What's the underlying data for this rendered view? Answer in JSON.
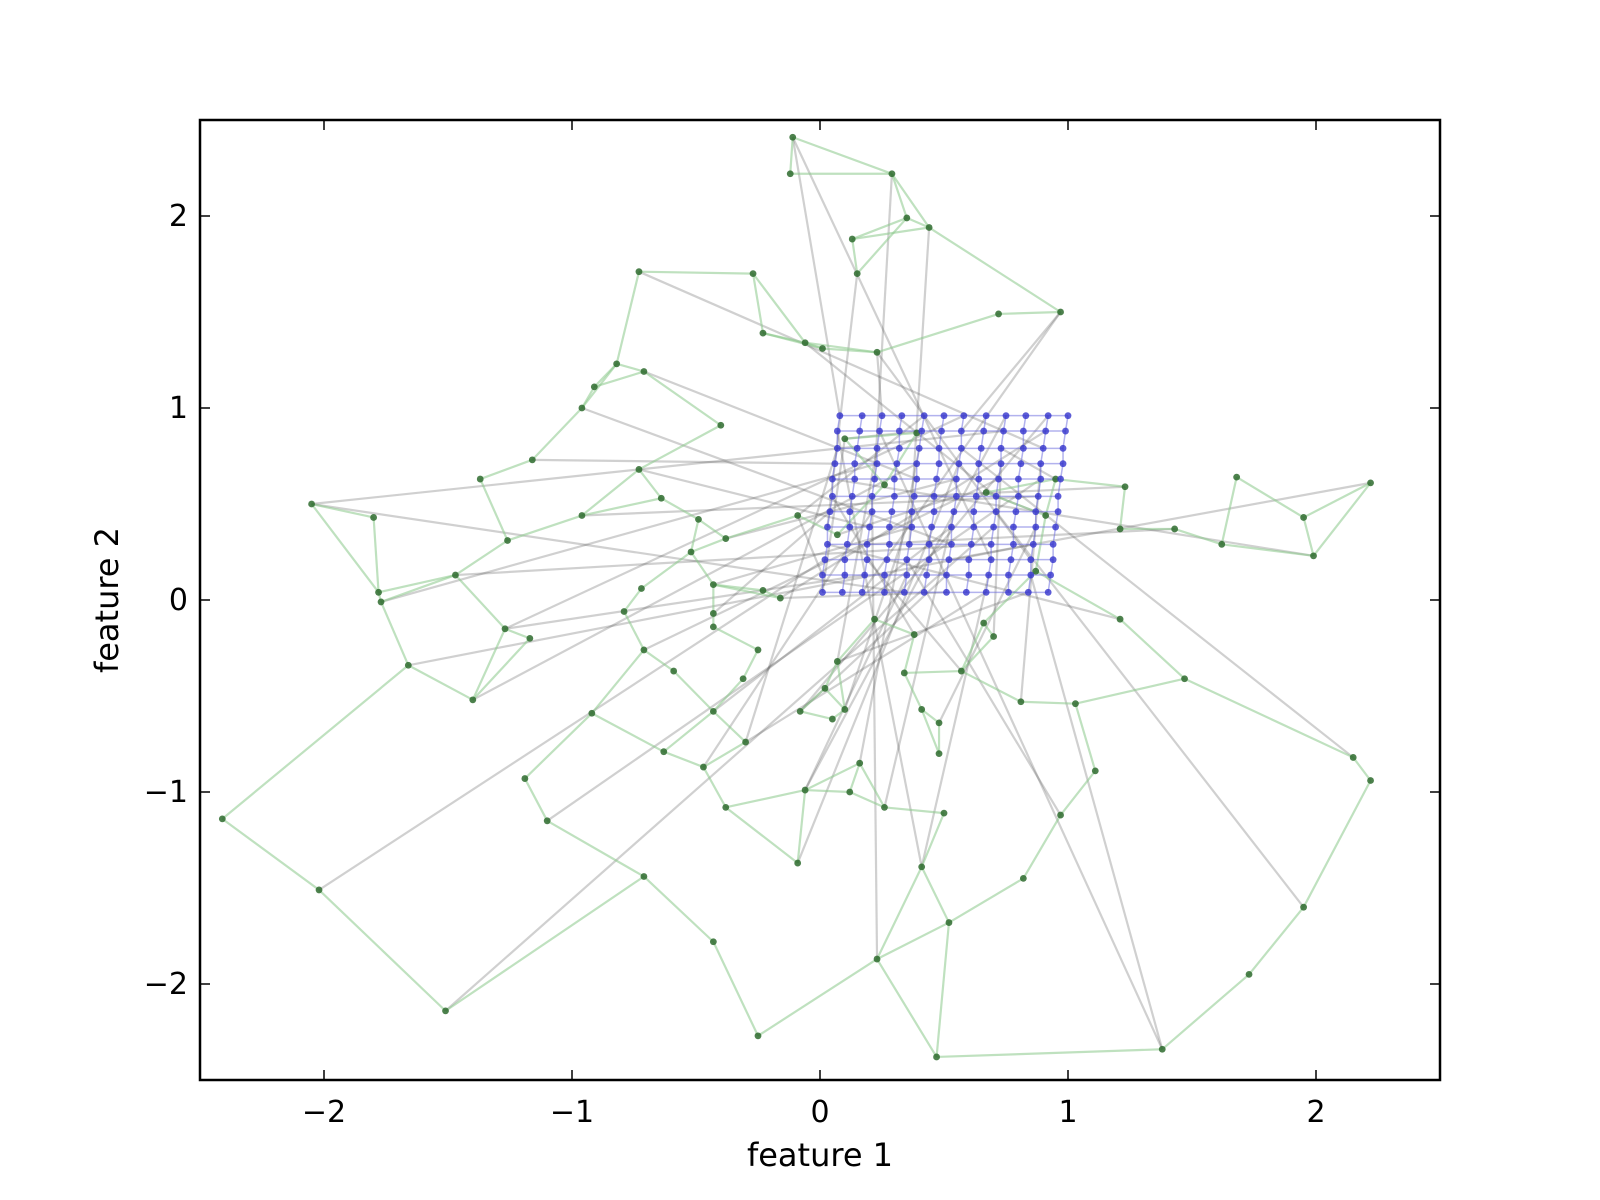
{
  "chart_data": {
    "type": "scatter",
    "title": "",
    "xlabel": "feature 1",
    "ylabel": "feature 2",
    "xlim": [
      -2.5,
      2.5
    ],
    "ylim": [
      -2.5,
      2.5
    ],
    "xticks": [
      -2,
      -1,
      0,
      1,
      2
    ],
    "yticks": [
      -2,
      -1,
      0,
      1,
      2
    ],
    "xtick_labels": [
      "−2",
      "−1",
      "0",
      "1",
      "2"
    ],
    "ytick_labels": [
      "−2",
      "−1",
      "0",
      "1",
      "2"
    ],
    "grid": false,
    "legend": "none",
    "colors": {
      "grid_points": "#3333cc",
      "grid_lines": "#6666dd",
      "map_points": "#2e6b2e",
      "map_edges": "#8ac88a",
      "connections": "#555555"
    },
    "series": [
      {
        "values": [
          [
            -0.11,
            2.41
          ],
          [
            -0.12,
            2.22
          ],
          [
            0.29,
            2.22
          ],
          [
            0.35,
            1.99
          ],
          [
            0.44,
            1.94
          ],
          [
            0.13,
            1.88
          ],
          [
            -0.73,
            1.71
          ],
          [
            -0.27,
            1.7
          ],
          [
            0.15,
            1.7
          ],
          [
            0.72,
            1.49
          ],
          [
            0.97,
            1.5
          ],
          [
            -0.23,
            1.39
          ],
          [
            -0.06,
            1.34
          ],
          [
            0.01,
            1.31
          ],
          [
            0.23,
            1.29
          ],
          [
            -0.82,
            1.23
          ],
          [
            -0.71,
            1.19
          ],
          [
            -0.91,
            1.11
          ],
          [
            -0.96,
            1.0
          ],
          [
            -0.4,
            0.91
          ],
          [
            -1.16,
            0.73
          ],
          [
            -1.37,
            0.63
          ],
          [
            -0.73,
            0.68
          ],
          [
            -0.64,
            0.53
          ],
          [
            -2.05,
            0.5
          ],
          [
            -1.8,
            0.43
          ],
          [
            -0.96,
            0.44
          ],
          [
            -0.49,
            0.42
          ],
          [
            -0.09,
            0.44
          ],
          [
            -1.26,
            0.31
          ],
          [
            -0.38,
            0.32
          ],
          [
            -0.52,
            0.25
          ],
          [
            -1.47,
            0.13
          ],
          [
            -1.78,
            0.04
          ],
          [
            -1.77,
            -0.01
          ],
          [
            -0.72,
            0.06
          ],
          [
            -0.43,
            0.08
          ],
          [
            -0.23,
            0.05
          ],
          [
            -0.16,
            0.01
          ],
          [
            -0.79,
            -0.06
          ],
          [
            -0.43,
            -0.07
          ],
          [
            -0.43,
            -0.14
          ],
          [
            -1.27,
            -0.15
          ],
          [
            -1.17,
            -0.2
          ],
          [
            -0.71,
            -0.26
          ],
          [
            -0.25,
            -0.26
          ],
          [
            -1.66,
            -0.34
          ],
          [
            -0.59,
            -0.37
          ],
          [
            -1.4,
            -0.52
          ],
          [
            -0.31,
            -0.41
          ],
          [
            -0.43,
            -0.58
          ],
          [
            -0.92,
            -0.59
          ],
          [
            -0.3,
            -0.74
          ],
          [
            -0.63,
            -0.79
          ],
          [
            -0.47,
            -0.87
          ],
          [
            -1.19,
            -0.93
          ],
          [
            -0.06,
            -0.99
          ],
          [
            -2.41,
            -1.14
          ],
          [
            -1.1,
            -1.15
          ],
          [
            -0.38,
            -1.08
          ],
          [
            -2.02,
            -1.51
          ],
          [
            -0.71,
            -1.44
          ],
          [
            -0.09,
            -1.37
          ],
          [
            -0.43,
            -1.78
          ],
          [
            -1.51,
            -2.14
          ],
          [
            -0.25,
            -2.27
          ],
          [
            0.07,
            -0.32
          ],
          [
            0.02,
            -0.46
          ],
          [
            0.1,
            -0.57
          ],
          [
            0.05,
            -0.62
          ],
          [
            -0.08,
            -0.58
          ],
          [
            0.22,
            -0.1
          ],
          [
            0.38,
            -0.18
          ],
          [
            0.34,
            -0.38
          ],
          [
            0.57,
            -0.37
          ],
          [
            0.66,
            -0.12
          ],
          [
            0.7,
            -0.19
          ],
          [
            0.41,
            -0.57
          ],
          [
            0.48,
            -0.64
          ],
          [
            0.48,
            -0.8
          ],
          [
            0.16,
            -0.85
          ],
          [
            0.12,
            -1.0
          ],
          [
            0.26,
            -1.08
          ],
          [
            0.5,
            -1.11
          ],
          [
            0.41,
            -1.39
          ],
          [
            0.52,
            -1.68
          ],
          [
            0.23,
            -1.87
          ],
          [
            0.82,
            -1.45
          ],
          [
            0.97,
            -1.12
          ],
          [
            1.11,
            -0.89
          ],
          [
            0.81,
            -0.53
          ],
          [
            1.03,
            -0.54
          ],
          [
            1.21,
            -0.1
          ],
          [
            1.47,
            -0.41
          ],
          [
            2.15,
            -0.82
          ],
          [
            2.22,
            -0.94
          ],
          [
            1.95,
            -1.6
          ],
          [
            1.73,
            -1.95
          ],
          [
            1.38,
            -2.34
          ],
          [
            0.47,
            -2.38
          ],
          [
            1.23,
            0.59
          ],
          [
            1.68,
            0.64
          ],
          [
            2.22,
            0.61
          ],
          [
            1.95,
            0.43
          ],
          [
            1.99,
            0.23
          ],
          [
            1.62,
            0.29
          ],
          [
            1.43,
            0.37
          ],
          [
            1.21,
            0.37
          ],
          [
            0.95,
            0.63
          ],
          [
            0.91,
            0.44
          ],
          [
            0.67,
            0.56
          ],
          [
            0.87,
            0.15
          ],
          [
            0.1,
            0.84
          ],
          [
            0.39,
            0.87
          ],
          [
            0.07,
            0.34
          ],
          [
            0.26,
            0.6
          ]
        ]
      },
      {
        "values": [
          [
            0.08,
            0.96
          ],
          [
            0.17,
            0.96
          ],
          [
            0.25,
            0.96
          ],
          [
            0.33,
            0.96
          ],
          [
            0.42,
            0.96
          ],
          [
            0.5,
            0.96
          ],
          [
            0.58,
            0.96
          ],
          [
            0.67,
            0.96
          ],
          [
            0.75,
            0.96
          ],
          [
            0.83,
            0.96
          ],
          [
            0.92,
            0.96
          ],
          [
            1.0,
            0.96
          ],
          [
            0.07,
            0.88
          ],
          [
            0.16,
            0.88
          ],
          [
            0.24,
            0.88
          ],
          [
            0.32,
            0.88
          ],
          [
            0.41,
            0.88
          ],
          [
            0.49,
            0.88
          ],
          [
            0.57,
            0.88
          ],
          [
            0.66,
            0.88
          ],
          [
            0.74,
            0.88
          ],
          [
            0.82,
            0.88
          ],
          [
            0.91,
            0.88
          ],
          [
            0.99,
            0.88
          ],
          [
            0.07,
            0.79
          ],
          [
            0.15,
            0.79
          ],
          [
            0.23,
            0.79
          ],
          [
            0.32,
            0.79
          ],
          [
            0.4,
            0.79
          ],
          [
            0.48,
            0.79
          ],
          [
            0.57,
            0.79
          ],
          [
            0.65,
            0.79
          ],
          [
            0.73,
            0.79
          ],
          [
            0.82,
            0.79
          ],
          [
            0.9,
            0.79
          ],
          [
            0.98,
            0.79
          ],
          [
            0.06,
            0.71
          ],
          [
            0.14,
            0.71
          ],
          [
            0.23,
            0.71
          ],
          [
            0.31,
            0.71
          ],
          [
            0.39,
            0.71
          ],
          [
            0.48,
            0.71
          ],
          [
            0.56,
            0.71
          ],
          [
            0.64,
            0.71
          ],
          [
            0.73,
            0.71
          ],
          [
            0.81,
            0.71
          ],
          [
            0.89,
            0.71
          ],
          [
            0.98,
            0.71
          ],
          [
            0.05,
            0.63
          ],
          [
            0.14,
            0.63
          ],
          [
            0.22,
            0.63
          ],
          [
            0.3,
            0.63
          ],
          [
            0.39,
            0.63
          ],
          [
            0.47,
            0.63
          ],
          [
            0.55,
            0.63
          ],
          [
            0.64,
            0.63
          ],
          [
            0.72,
            0.63
          ],
          [
            0.8,
            0.63
          ],
          [
            0.89,
            0.63
          ],
          [
            0.97,
            0.63
          ],
          [
            0.05,
            0.54
          ],
          [
            0.13,
            0.54
          ],
          [
            0.21,
            0.54
          ],
          [
            0.3,
            0.54
          ],
          [
            0.38,
            0.54
          ],
          [
            0.46,
            0.54
          ],
          [
            0.55,
            0.54
          ],
          [
            0.63,
            0.54
          ],
          [
            0.71,
            0.54
          ],
          [
            0.8,
            0.54
          ],
          [
            0.88,
            0.54
          ],
          [
            0.96,
            0.54
          ],
          [
            0.04,
            0.46
          ],
          [
            0.12,
            0.46
          ],
          [
            0.21,
            0.46
          ],
          [
            0.29,
            0.46
          ],
          [
            0.37,
            0.46
          ],
          [
            0.46,
            0.46
          ],
          [
            0.54,
            0.46
          ],
          [
            0.62,
            0.46
          ],
          [
            0.71,
            0.46
          ],
          [
            0.79,
            0.46
          ],
          [
            0.87,
            0.46
          ],
          [
            0.96,
            0.46
          ],
          [
            0.03,
            0.38
          ],
          [
            0.12,
            0.38
          ],
          [
            0.2,
            0.38
          ],
          [
            0.28,
            0.38
          ],
          [
            0.37,
            0.38
          ],
          [
            0.45,
            0.38
          ],
          [
            0.53,
            0.38
          ],
          [
            0.62,
            0.38
          ],
          [
            0.7,
            0.38
          ],
          [
            0.78,
            0.38
          ],
          [
            0.87,
            0.38
          ],
          [
            0.95,
            0.38
          ],
          [
            0.03,
            0.29
          ],
          [
            0.11,
            0.29
          ],
          [
            0.19,
            0.29
          ],
          [
            0.28,
            0.29
          ],
          [
            0.36,
            0.29
          ],
          [
            0.44,
            0.29
          ],
          [
            0.53,
            0.29
          ],
          [
            0.61,
            0.29
          ],
          [
            0.69,
            0.29
          ],
          [
            0.78,
            0.29
          ],
          [
            0.86,
            0.29
          ],
          [
            0.94,
            0.29
          ],
          [
            0.02,
            0.21
          ],
          [
            0.1,
            0.21
          ],
          [
            0.19,
            0.21
          ],
          [
            0.27,
            0.21
          ],
          [
            0.35,
            0.21
          ],
          [
            0.44,
            0.21
          ],
          [
            0.52,
            0.21
          ],
          [
            0.6,
            0.21
          ],
          [
            0.69,
            0.21
          ],
          [
            0.77,
            0.21
          ],
          [
            0.85,
            0.21
          ],
          [
            0.94,
            0.21
          ],
          [
            0.01,
            0.13
          ],
          [
            0.1,
            0.13
          ],
          [
            0.18,
            0.13
          ],
          [
            0.26,
            0.13
          ],
          [
            0.35,
            0.13
          ],
          [
            0.43,
            0.13
          ],
          [
            0.51,
            0.13
          ],
          [
            0.6,
            0.13
          ],
          [
            0.68,
            0.13
          ],
          [
            0.76,
            0.13
          ],
          [
            0.85,
            0.13
          ],
          [
            0.93,
            0.13
          ],
          [
            0.01,
            0.04
          ],
          [
            0.09,
            0.04
          ],
          [
            0.17,
            0.04
          ],
          [
            0.26,
            0.04
          ],
          [
            0.34,
            0.04
          ],
          [
            0.42,
            0.04
          ],
          [
            0.51,
            0.04
          ],
          [
            0.59,
            0.04
          ],
          [
            0.67,
            0.04
          ],
          [
            0.76,
            0.04
          ],
          [
            0.84,
            0.04
          ],
          [
            0.92,
            0.04
          ]
        ]
      }
    ]
  }
}
